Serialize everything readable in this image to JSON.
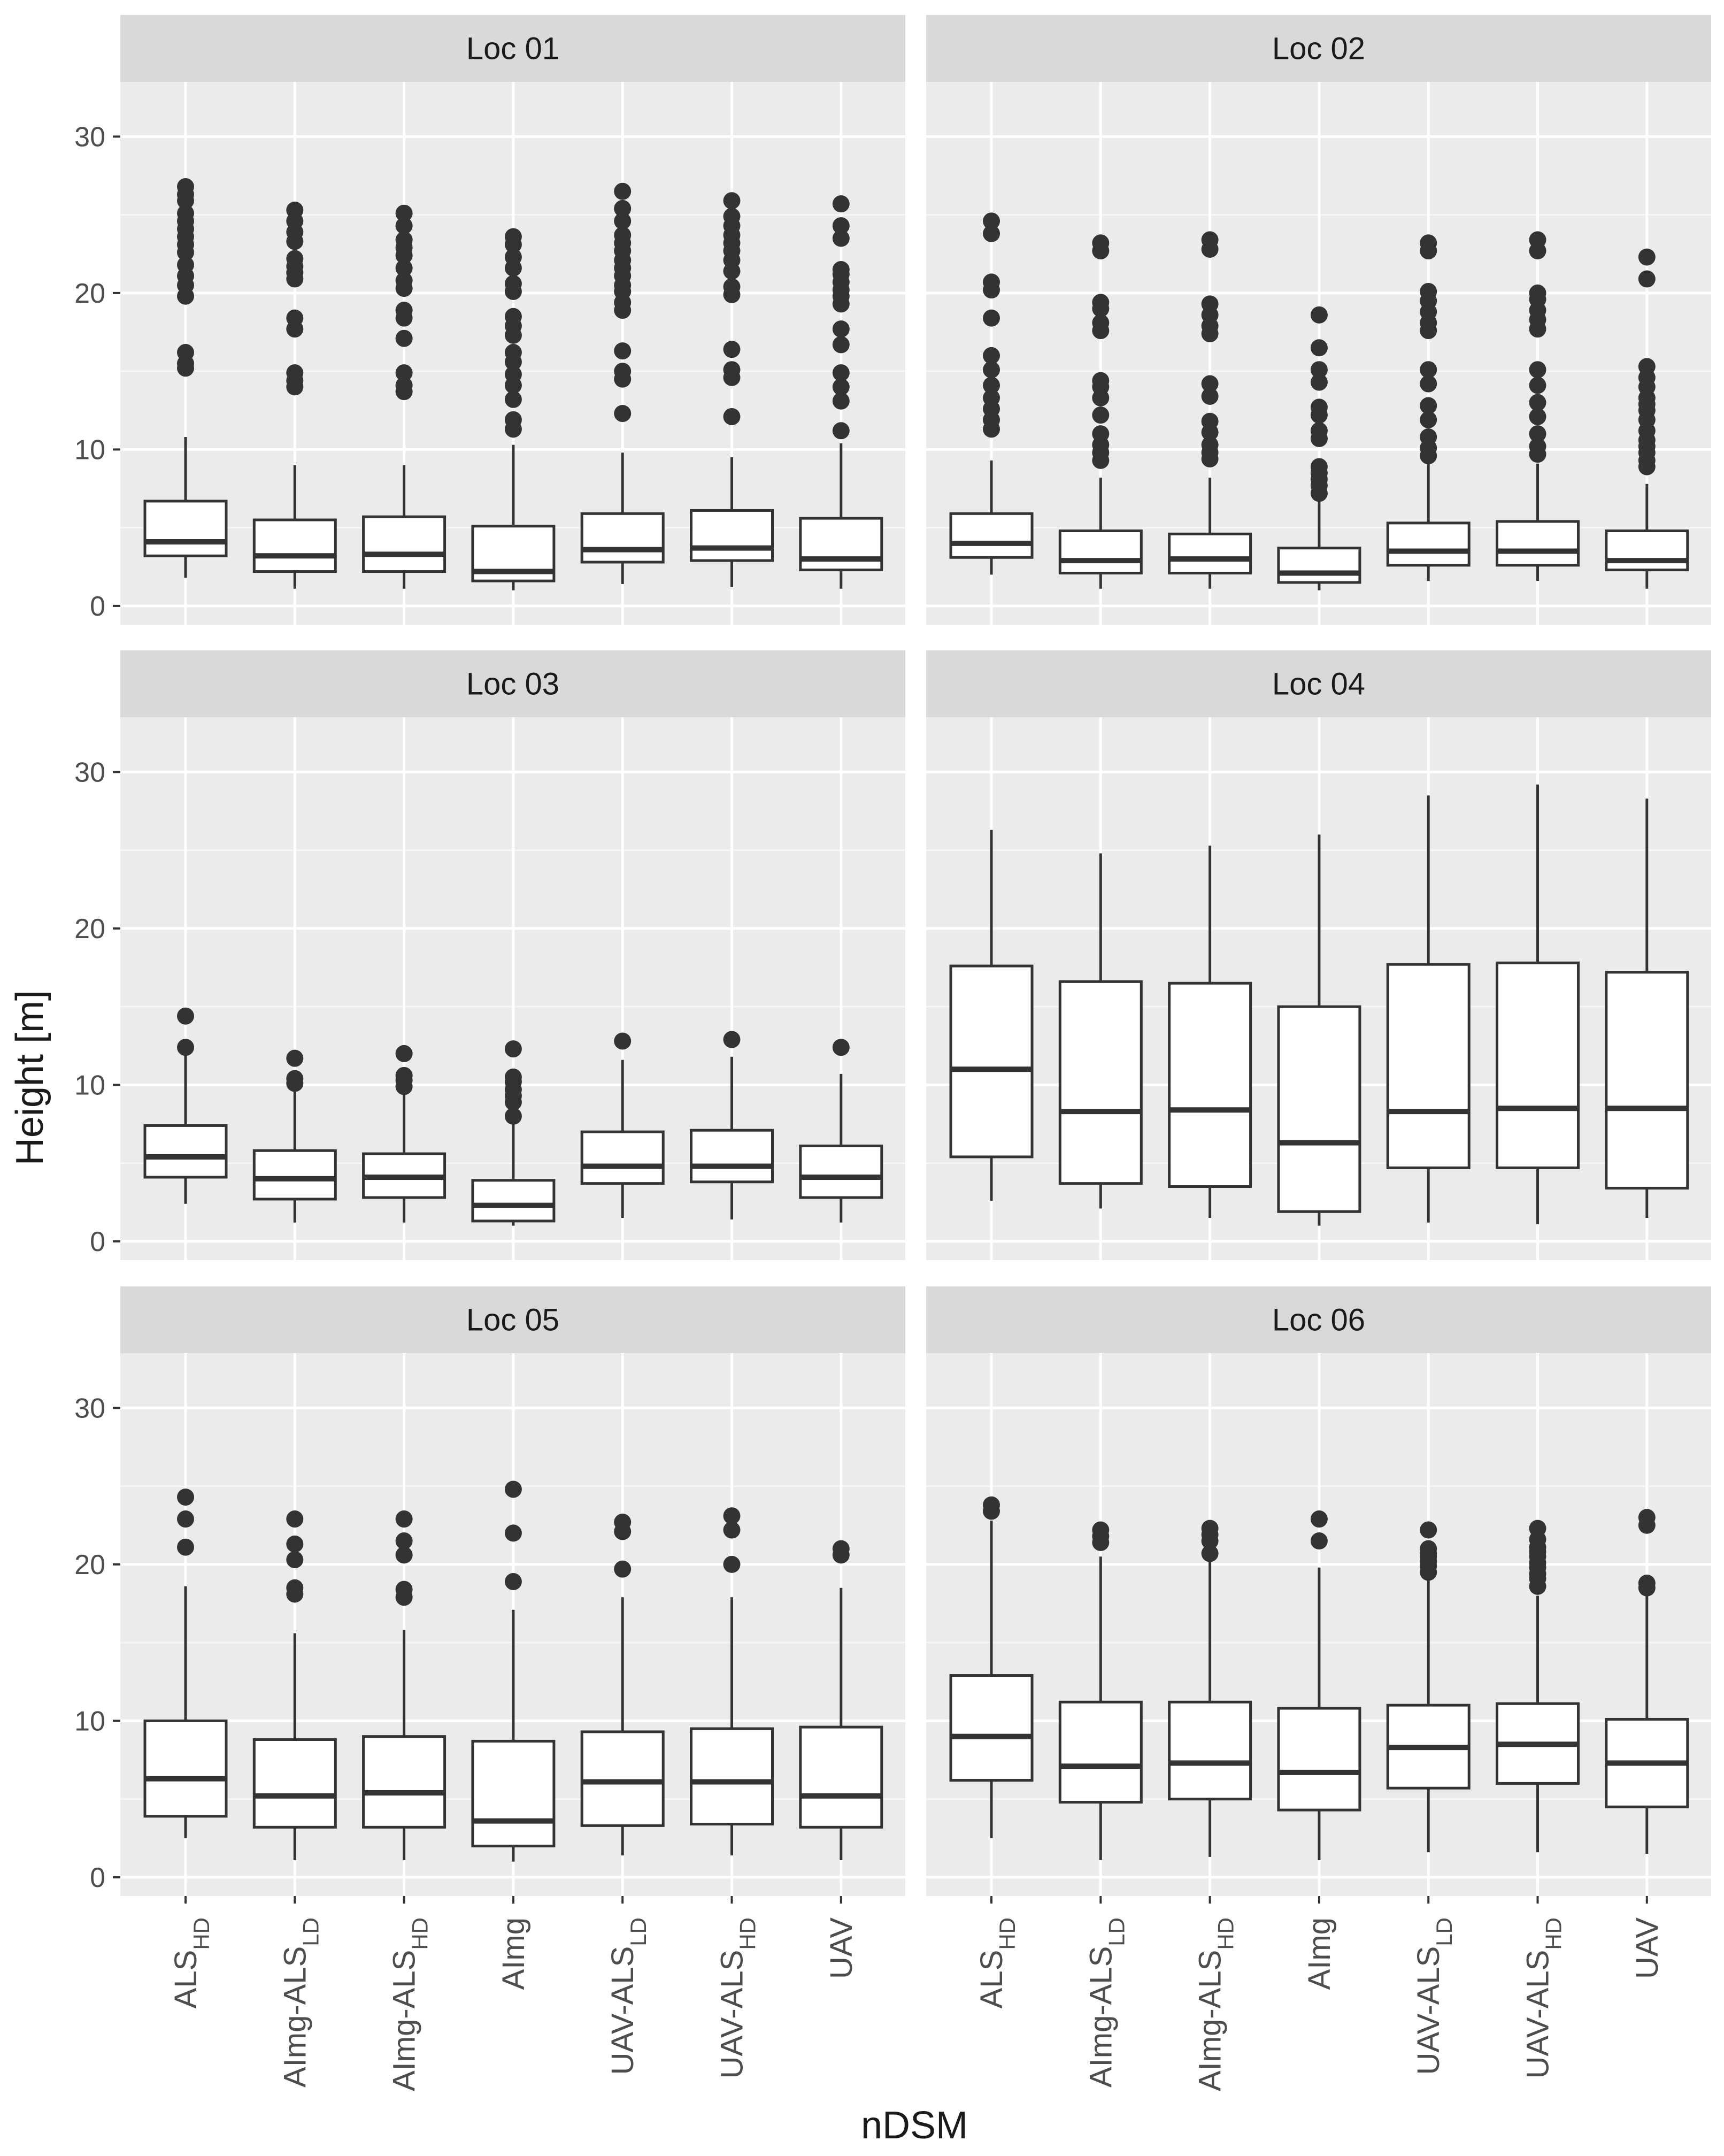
{
  "chart_data": {
    "type": "boxplot",
    "layout": "facet grid, 3 rows x 2 columns",
    "xlabel": "nDSM",
    "ylabel": "Height [m]",
    "ylim": [
      -1.2,
      33.5
    ],
    "yticks": [
      0,
      10,
      20,
      30
    ],
    "categories": [
      {
        "base": "ALS",
        "sub": "HD"
      },
      {
        "base": "AImg-ALS",
        "sub": "LD"
      },
      {
        "base": "AImg-ALS",
        "sub": "HD"
      },
      {
        "base": "AImg",
        "sub": ""
      },
      {
        "base": "UAV-ALS",
        "sub": "LD"
      },
      {
        "base": "UAV-ALS",
        "sub": "HD"
      },
      {
        "base": "UAV",
        "sub": ""
      }
    ],
    "panels": [
      {
        "title": "Loc 01",
        "boxes": [
          {
            "lower": 1.8,
            "q1": 3.2,
            "median": 4.1,
            "q3": 6.7,
            "upper": 10.8,
            "outliers": [
              15.2,
              15.5,
              16.2,
              19.8,
              20.5,
              21.1,
              21.8,
              22.6,
              23.1,
              23.6,
              24.1,
              24.6,
              25.1,
              25.9,
              26.3,
              26.8
            ]
          },
          {
            "lower": 1.1,
            "q1": 2.2,
            "median": 3.2,
            "q3": 5.5,
            "upper": 9.0,
            "outliers": [
              14.0,
              14.4,
              14.9,
              17.7,
              18.4,
              20.9,
              21.3,
              21.7,
              22.2,
              23.3,
              23.9,
              24.6,
              25.3
            ]
          },
          {
            "lower": 1.1,
            "q1": 2.2,
            "median": 3.3,
            "q3": 5.7,
            "upper": 9.0,
            "outliers": [
              13.7,
              14.1,
              14.9,
              17.1,
              18.4,
              18.9,
              20.3,
              20.8,
              21.6,
              22.4,
              22.9,
              23.4,
              24.3,
              25.1
            ]
          },
          {
            "lower": 1.0,
            "q1": 1.6,
            "median": 2.2,
            "q3": 5.1,
            "upper": 10.3,
            "outliers": [
              11.3,
              11.9,
              13.2,
              14.1,
              14.8,
              15.6,
              16.2,
              17.3,
              17.9,
              18.5,
              20.1,
              20.6,
              21.6,
              22.3,
              23.1,
              23.6
            ]
          },
          {
            "lower": 1.4,
            "q1": 2.8,
            "median": 3.6,
            "q3": 5.9,
            "upper": 9.8,
            "outliers": [
              12.3,
              14.5,
              15.0,
              16.3,
              18.9,
              19.4,
              20.1,
              20.5,
              21.1,
              21.6,
              22.1,
              22.7,
              23.2,
              23.7,
              24.6,
              25.4,
              26.5
            ]
          },
          {
            "lower": 1.2,
            "q1": 2.9,
            "median": 3.7,
            "q3": 6.1,
            "upper": 9.5,
            "outliers": [
              12.1,
              14.6,
              15.1,
              16.4,
              19.9,
              20.4,
              21.4,
              22.1,
              22.7,
              23.2,
              23.7,
              24.3,
              24.9,
              25.9
            ]
          },
          {
            "lower": 1.1,
            "q1": 2.3,
            "median": 3.0,
            "q3": 5.6,
            "upper": 10.4,
            "outliers": [
              11.2,
              13.1,
              14.0,
              14.9,
              16.7,
              17.7,
              19.3,
              19.8,
              20.2,
              20.7,
              21.2,
              21.5,
              23.5,
              24.3,
              25.7
            ]
          }
        ]
      },
      {
        "title": "Loc 02",
        "boxes": [
          {
            "lower": 2.0,
            "q1": 3.1,
            "median": 4.0,
            "q3": 5.9,
            "upper": 9.3,
            "outliers": [
              11.3,
              11.9,
              12.6,
              13.3,
              14.1,
              15.1,
              16.0,
              18.4,
              20.2,
              20.7,
              23.8,
              24.6
            ]
          },
          {
            "lower": 1.1,
            "q1": 2.1,
            "median": 2.9,
            "q3": 4.8,
            "upper": 8.2,
            "outliers": [
              9.3,
              9.8,
              10.3,
              11.0,
              12.2,
              13.3,
              14.0,
              14.4,
              17.6,
              18.1,
              19.0,
              19.4,
              22.7,
              23.2
            ]
          },
          {
            "lower": 1.1,
            "q1": 2.1,
            "median": 3.0,
            "q3": 4.6,
            "upper": 8.2,
            "outliers": [
              9.4,
              9.8,
              10.3,
              11.1,
              11.8,
              13.4,
              14.2,
              17.4,
              17.9,
              18.6,
              19.3,
              22.8,
              23.4
            ]
          },
          {
            "lower": 1.0,
            "q1": 1.5,
            "median": 2.1,
            "q3": 3.7,
            "upper": 6.9,
            "outliers": [
              7.2,
              7.7,
              8.1,
              8.5,
              8.9,
              10.7,
              11.2,
              12.2,
              12.7,
              14.3,
              15.1,
              16.5,
              18.6
            ]
          },
          {
            "lower": 1.6,
            "q1": 2.6,
            "median": 3.5,
            "q3": 5.3,
            "upper": 9.1,
            "outliers": [
              9.6,
              10.1,
              10.8,
              11.9,
              12.8,
              14.2,
              15.1,
              17.6,
              18.1,
              18.8,
              19.5,
              20.1,
              22.7,
              23.2
            ]
          },
          {
            "lower": 1.6,
            "q1": 2.6,
            "median": 3.5,
            "q3": 5.4,
            "upper": 9.1,
            "outliers": [
              9.7,
              10.2,
              11.0,
              12.1,
              13.0,
              14.1,
              15.1,
              17.7,
              18.3,
              18.9,
              19.6,
              20.0,
              22.7,
              23.4
            ]
          },
          {
            "lower": 1.1,
            "q1": 2.3,
            "median": 2.9,
            "q3": 4.8,
            "upper": 7.8,
            "outliers": [
              8.9,
              9.3,
              9.8,
              10.2,
              10.6,
              11.2,
              11.9,
              12.5,
              12.9,
              13.3,
              14.0,
              14.6,
              15.3,
              20.9,
              22.3
            ]
          }
        ]
      },
      {
        "title": "Loc 03",
        "boxes": [
          {
            "lower": 2.4,
            "q1": 4.1,
            "median": 5.4,
            "q3": 7.4,
            "upper": 11.9,
            "outliers": [
              12.4,
              14.4
            ]
          },
          {
            "lower": 1.2,
            "q1": 2.7,
            "median": 4.0,
            "q3": 5.8,
            "upper": 9.9,
            "outliers": [
              10.1,
              10.4,
              11.7
            ]
          },
          {
            "lower": 1.2,
            "q1": 2.8,
            "median": 4.1,
            "q3": 5.6,
            "upper": 9.6,
            "outliers": [
              9.9,
              10.3,
              10.6,
              12.0
            ]
          },
          {
            "lower": 1.0,
            "q1": 1.3,
            "median": 2.3,
            "q3": 3.9,
            "upper": 7.9,
            "outliers": [
              8.0,
              8.9,
              9.3,
              9.7,
              10.2,
              10.5,
              12.3
            ]
          },
          {
            "lower": 1.5,
            "q1": 3.7,
            "median": 4.8,
            "q3": 7.0,
            "upper": 11.6,
            "outliers": [
              12.8
            ]
          },
          {
            "lower": 1.4,
            "q1": 3.8,
            "median": 4.8,
            "q3": 7.1,
            "upper": 11.8,
            "outliers": [
              12.9
            ]
          },
          {
            "lower": 1.2,
            "q1": 2.8,
            "median": 4.1,
            "q3": 6.1,
            "upper": 10.7,
            "outliers": [
              12.4
            ]
          }
        ]
      },
      {
        "title": "Loc 04",
        "boxes": [
          {
            "lower": 2.6,
            "q1": 5.4,
            "median": 11.0,
            "q3": 17.6,
            "upper": 26.3,
            "outliers": []
          },
          {
            "lower": 2.1,
            "q1": 3.7,
            "median": 8.3,
            "q3": 16.6,
            "upper": 24.8,
            "outliers": []
          },
          {
            "lower": 1.5,
            "q1": 3.5,
            "median": 8.4,
            "q3": 16.5,
            "upper": 25.3,
            "outliers": []
          },
          {
            "lower": 1.0,
            "q1": 1.9,
            "median": 6.3,
            "q3": 15.0,
            "upper": 26.0,
            "outliers": []
          },
          {
            "lower": 1.2,
            "q1": 4.7,
            "median": 8.3,
            "q3": 17.7,
            "upper": 28.5,
            "outliers": []
          },
          {
            "lower": 1.1,
            "q1": 4.7,
            "median": 8.5,
            "q3": 17.8,
            "upper": 29.2,
            "outliers": []
          },
          {
            "lower": 1.5,
            "q1": 3.4,
            "median": 8.5,
            "q3": 17.2,
            "upper": 28.3,
            "outliers": []
          }
        ]
      },
      {
        "title": "Loc 05",
        "boxes": [
          {
            "lower": 2.5,
            "q1": 3.9,
            "median": 6.3,
            "q3": 10.0,
            "upper": 18.6,
            "outliers": [
              21.1,
              22.9,
              24.3
            ]
          },
          {
            "lower": 1.1,
            "q1": 3.2,
            "median": 5.2,
            "q3": 8.8,
            "upper": 15.6,
            "outliers": [
              18.1,
              18.5,
              20.3,
              21.3,
              22.9
            ]
          },
          {
            "lower": 1.1,
            "q1": 3.2,
            "median": 5.4,
            "q3": 9.0,
            "upper": 15.8,
            "outliers": [
              17.9,
              18.4,
              20.6,
              21.5,
              22.9
            ]
          },
          {
            "lower": 1.0,
            "q1": 2.0,
            "median": 3.6,
            "q3": 8.7,
            "upper": 17.1,
            "outliers": [
              18.9,
              22.0,
              24.8
            ]
          },
          {
            "lower": 1.4,
            "q1": 3.3,
            "median": 6.1,
            "q3": 9.3,
            "upper": 17.9,
            "outliers": [
              19.7,
              22.1,
              22.7
            ]
          },
          {
            "lower": 1.4,
            "q1": 3.4,
            "median": 6.1,
            "q3": 9.5,
            "upper": 17.9,
            "outliers": [
              20.0,
              22.2,
              23.1
            ]
          },
          {
            "lower": 1.1,
            "q1": 3.2,
            "median": 5.2,
            "q3": 9.6,
            "upper": 18.5,
            "outliers": [
              20.6,
              21.0
            ]
          }
        ]
      },
      {
        "title": "Loc 06",
        "boxes": [
          {
            "lower": 2.5,
            "q1": 6.2,
            "median": 9.0,
            "q3": 12.9,
            "upper": 22.8,
            "outliers": [
              23.4,
              23.8
            ]
          },
          {
            "lower": 1.1,
            "q1": 4.8,
            "median": 7.1,
            "q3": 11.2,
            "upper": 20.5,
            "outliers": [
              21.4,
              21.8,
              22.2
            ]
          },
          {
            "lower": 1.3,
            "q1": 5.0,
            "median": 7.3,
            "q3": 11.2,
            "upper": 20.3,
            "outliers": [
              20.7,
              21.5,
              21.9,
              22.3
            ]
          },
          {
            "lower": 1.1,
            "q1": 4.3,
            "median": 6.7,
            "q3": 10.8,
            "upper": 19.8,
            "outliers": [
              21.5,
              22.9
            ]
          },
          {
            "lower": 1.6,
            "q1": 5.7,
            "median": 8.3,
            "q3": 11.0,
            "upper": 19.0,
            "outliers": [
              19.5,
              19.9,
              20.2,
              20.5,
              20.7,
              21.0,
              22.2
            ]
          },
          {
            "lower": 1.6,
            "q1": 6.0,
            "median": 8.5,
            "q3": 11.1,
            "upper": 18.0,
            "outliers": [
              18.6,
              19.1,
              19.4,
              19.8,
              20.1,
              20.5,
              20.8,
              21.1,
              21.6,
              22.3
            ]
          },
          {
            "lower": 1.5,
            "q1": 4.5,
            "median": 7.3,
            "q3": 10.1,
            "upper": 18.1,
            "outliers": [
              18.5,
              18.8,
              22.5,
              23.0
            ]
          }
        ]
      }
    ],
    "colors": {
      "panel_background": "#ebebeb",
      "strip_background": "#d9d9d9",
      "grid_major": "#ffffff",
      "box_fill": "#ffffff",
      "box_line": "#333333",
      "outlier": "#333333",
      "tick_text": "#4d4d4d",
      "title_text": "#1a1a1a"
    }
  }
}
